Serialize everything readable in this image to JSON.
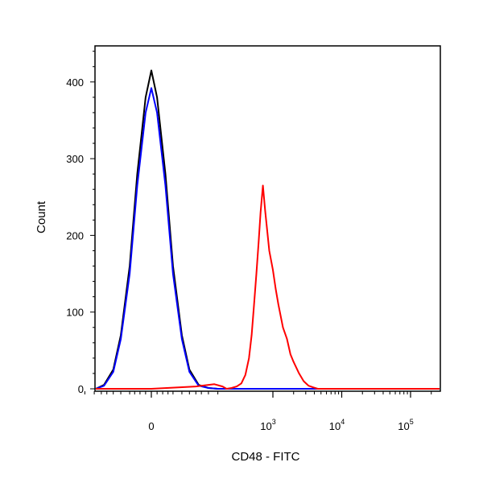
{
  "chart_data": {
    "type": "line",
    "title": "",
    "xlabel": "CD48 - FITC",
    "ylabel": "Count",
    "x_scale": "biexponential",
    "x_tick_labels": [
      "0",
      "10^3",
      "10^4",
      "10^5"
    ],
    "x_tick_values": [
      0,
      1000,
      10000,
      100000
    ],
    "ylim": [
      0,
      450
    ],
    "y_ticks": [
      0,
      100,
      200,
      300,
      400
    ],
    "grid": false,
    "legend": "none",
    "series": [
      {
        "color": "#000000",
        "x": [
          -150,
          -110,
          -80,
          -60,
          -40,
          -25,
          -10,
          0,
          10,
          25,
          40,
          60,
          80,
          110,
          150,
          200
        ],
        "y": [
          0,
          5,
          25,
          70,
          160,
          280,
          380,
          415,
          380,
          280,
          160,
          70,
          25,
          5,
          1,
          0
        ]
      },
      {
        "color": "#0000ff",
        "x": [
          -150,
          -110,
          -80,
          -60,
          -40,
          -25,
          -10,
          0,
          10,
          25,
          40,
          60,
          80,
          110,
          150,
          200
        ],
        "y": [
          0,
          4,
          22,
          65,
          150,
          265,
          360,
          392,
          360,
          265,
          150,
          65,
          22,
          4,
          1,
          0
        ]
      },
      {
        "color": "#ff0000",
        "x": [
          -300,
          0,
          100,
          180,
          230,
          260,
          300,
          350,
          400,
          450,
          500,
          540,
          580,
          620,
          660,
          700,
          750,
          800,
          900,
          1000,
          1100,
          1200,
          1400,
          1600,
          1800,
          2000,
          2400,
          2800,
          3300,
          3800,
          4500,
          6000
        ],
        "y": [
          0,
          0,
          3,
          6,
          3,
          0,
          1,
          3,
          7,
          18,
          40,
          70,
          110,
          150,
          190,
          230,
          265,
          232,
          180,
          155,
          130,
          110,
          80,
          65,
          45,
          35,
          20,
          10,
          4,
          2,
          0,
          0
        ]
      }
    ]
  }
}
